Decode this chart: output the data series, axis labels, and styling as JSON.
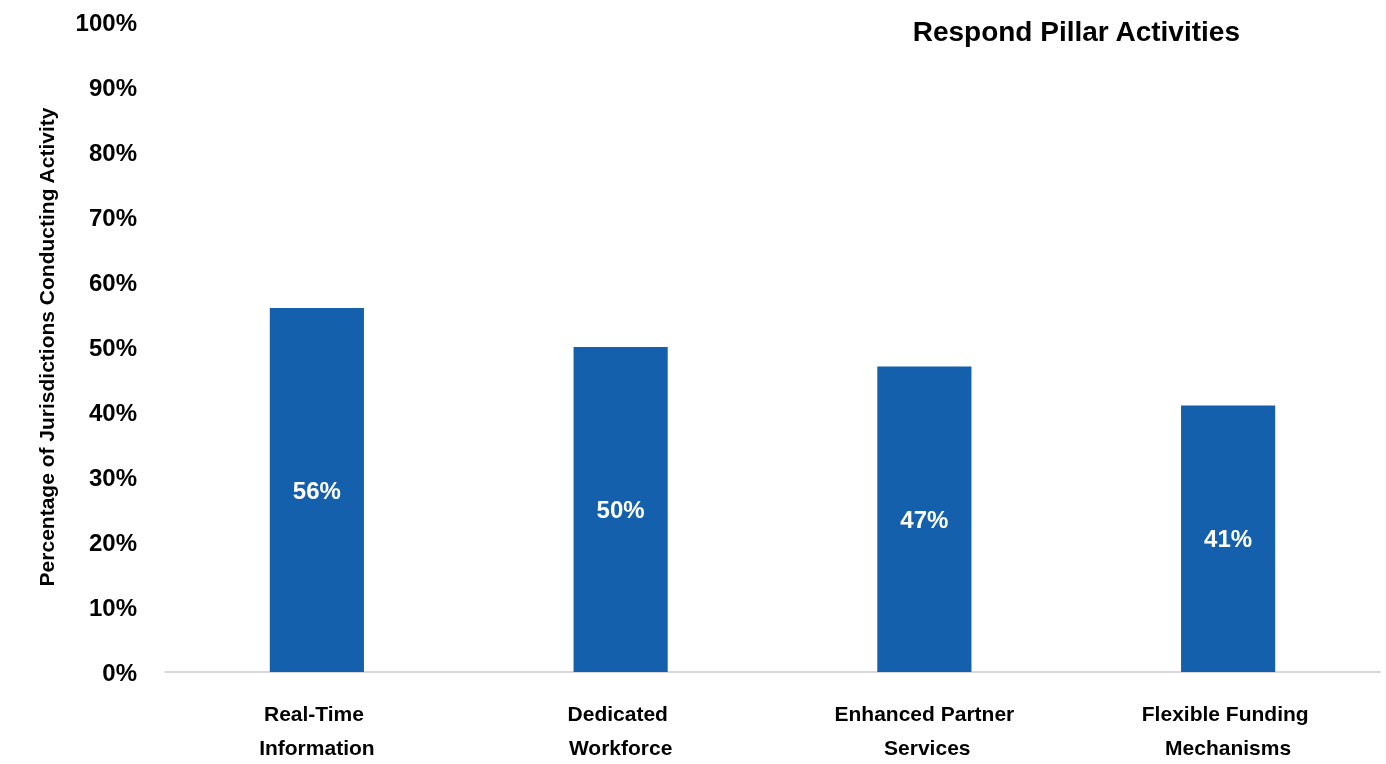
{
  "chart_data": {
    "type": "bar",
    "title": "Respond Pillar Activities",
    "ylabel": "Percentage of Jurisdictions Conducting Activity",
    "categories": [
      "Real-Time Information",
      "Dedicated Workforce",
      "Enhanced Partner Services",
      "Flexible Funding Mechanisms"
    ],
    "values": [
      56,
      50,
      47,
      41
    ],
    "value_labels": [
      "56%",
      "50%",
      "47%",
      "41%"
    ],
    "color": "#1560ac",
    "ylim": [
      0,
      100
    ],
    "yticks": [
      {
        "value": 0,
        "label": "0%"
      },
      {
        "value": 10,
        "label": "10%"
      },
      {
        "value": 20,
        "label": "20%"
      },
      {
        "value": 30,
        "label": "30%"
      },
      {
        "value": 40,
        "label": "40%"
      },
      {
        "value": 50,
        "label": "50%"
      },
      {
        "value": 60,
        "label": "60%"
      },
      {
        "value": 70,
        "label": "70%"
      },
      {
        "value": 80,
        "label": "80%"
      },
      {
        "value": 90,
        "label": "90%"
      },
      {
        "value": 100,
        "label": "100%"
      }
    ],
    "grid": false
  }
}
